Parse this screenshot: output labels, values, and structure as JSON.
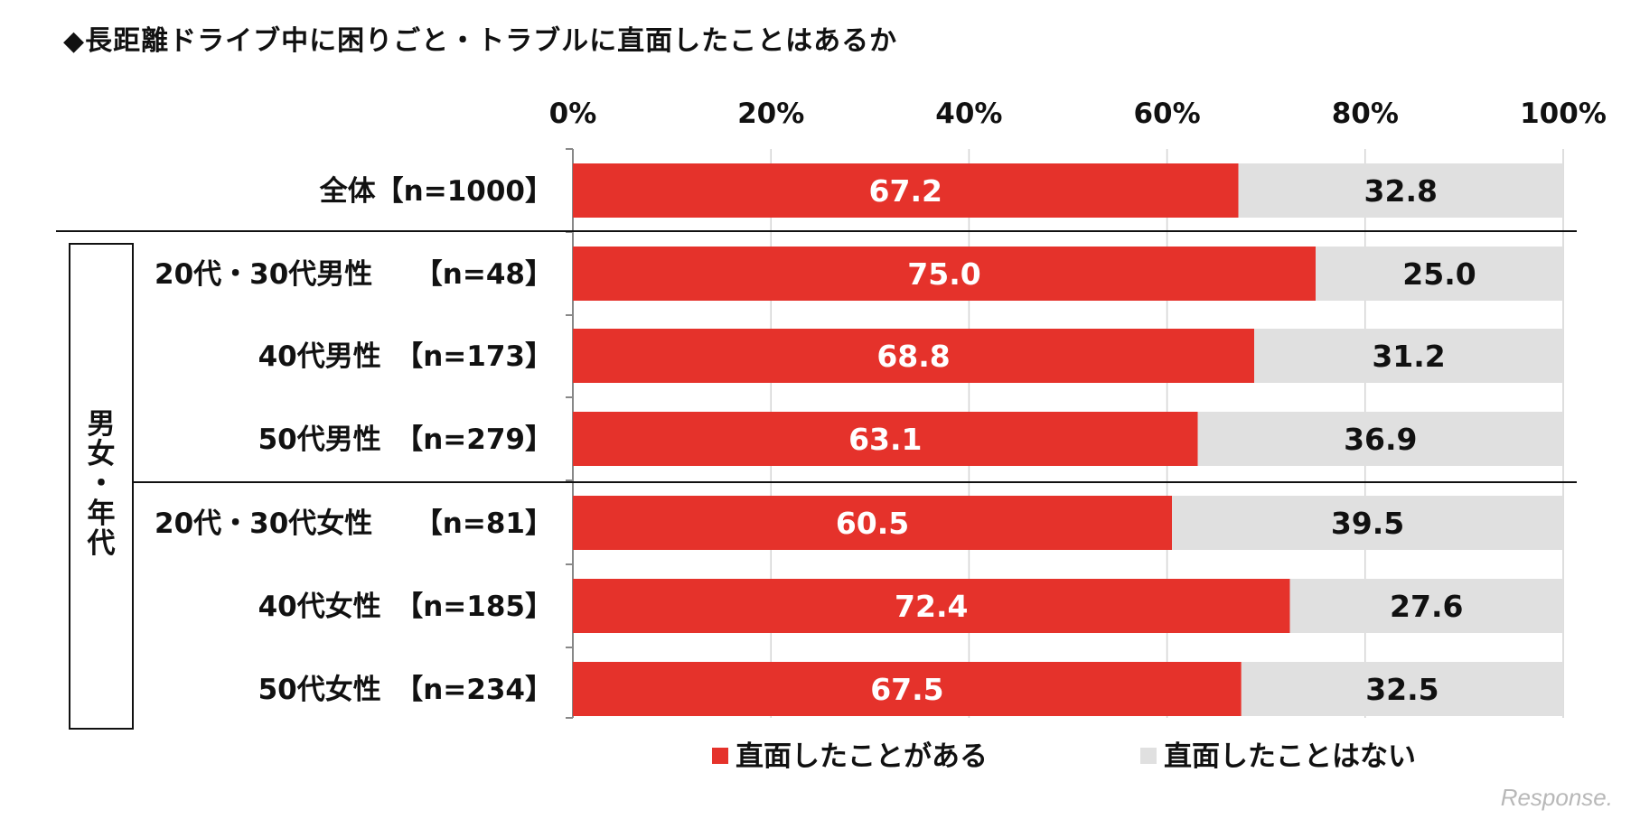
{
  "chart_data": {
    "type": "bar",
    "title": "◆長距離ドライブ中に困りごと・トラブルに直面したことはあるか",
    "x_ticks": [
      "0%",
      "20%",
      "40%",
      "60%",
      "80%",
      "100%"
    ],
    "xlim": [
      0,
      100
    ],
    "orientation": "horizontal",
    "stacked": true,
    "group_label": [
      "男",
      "女",
      "・",
      "年",
      "代"
    ],
    "categories": [
      "全体【n=1000】",
      "20代・30代男性　　【n=48】",
      "40代男性　【n=173】",
      "50代男性　【n=279】",
      "20代・30代女性　　【n=81】",
      "40代女性　【n=185】",
      "50代女性　【n=234】"
    ],
    "series": [
      {
        "name": "直面したことがある",
        "color": "#e5322b",
        "values": [
          67.2,
          75.0,
          68.8,
          63.1,
          60.5,
          72.4,
          67.5
        ],
        "labels": [
          "67.2",
          "75.0",
          "68.8",
          "63.1",
          "60.5",
          "72.4",
          "67.5"
        ]
      },
      {
        "name": "直面したことはない",
        "color": "#e0e0e0",
        "values": [
          32.8,
          25.0,
          31.2,
          36.9,
          39.5,
          27.6,
          32.5
        ],
        "labels": [
          "32.8",
          "25.0",
          "31.2",
          "36.9",
          "39.5",
          "27.6",
          "32.5"
        ]
      }
    ],
    "legend_position": "bottom",
    "grid": true
  },
  "watermark": "Response."
}
